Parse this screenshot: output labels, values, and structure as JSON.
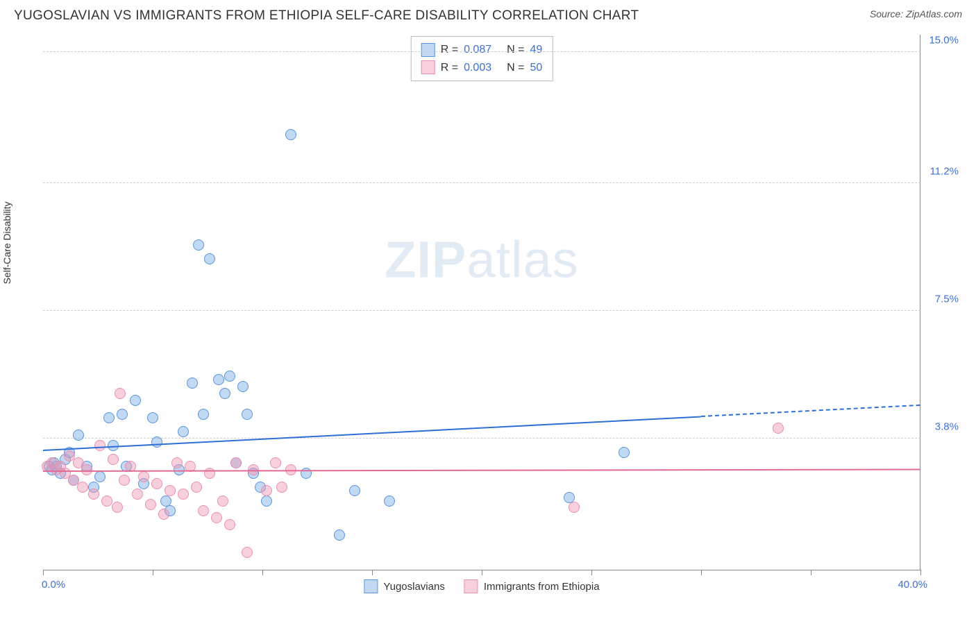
{
  "title": "YUGOSLAVIAN VS IMMIGRANTS FROM ETHIOPIA SELF-CARE DISABILITY CORRELATION CHART",
  "source": "Source: ZipAtlas.com",
  "ylabel": "Self-Care Disability",
  "watermark_a": "ZIP",
  "watermark_b": "atlas",
  "xlim": [
    0,
    40
  ],
  "ylim": [
    0,
    15.5
  ],
  "xaxis_min_label": "0.0%",
  "xaxis_max_label": "40.0%",
  "yticks": [
    {
      "v": 3.8,
      "label": "3.8%"
    },
    {
      "v": 7.5,
      "label": "7.5%"
    },
    {
      "v": 11.2,
      "label": "11.2%"
    },
    {
      "v": 15.0,
      "label": "15.0%"
    }
  ],
  "xtick_positions": [
    0,
    5,
    10,
    15,
    20,
    25,
    30,
    35,
    40
  ],
  "series": [
    {
      "key": "yugoslavians",
      "name": "Yugoslavians",
      "fill": "rgba(120,170,230,0.45)",
      "stroke": "#5a94d8",
      "trend_color": "#2e6fd6",
      "R": "0.087",
      "N": "49",
      "trend": {
        "x0": 0,
        "y0": 3.5,
        "x1": 40,
        "y1": 4.8,
        "solid_until_x": 30
      },
      "points": [
        [
          0.3,
          3.0
        ],
        [
          0.4,
          2.9
        ],
        [
          0.5,
          3.1
        ],
        [
          0.6,
          3.0
        ],
        [
          0.8,
          2.8
        ],
        [
          1.0,
          3.2
        ],
        [
          1.2,
          3.4
        ],
        [
          1.4,
          2.6
        ],
        [
          1.6,
          3.9
        ],
        [
          2.0,
          3.0
        ],
        [
          2.3,
          2.4
        ],
        [
          2.6,
          2.7
        ],
        [
          3.0,
          4.4
        ],
        [
          3.2,
          3.6
        ],
        [
          3.6,
          4.5
        ],
        [
          3.8,
          3.0
        ],
        [
          4.2,
          4.9
        ],
        [
          4.6,
          2.5
        ],
        [
          5.0,
          4.4
        ],
        [
          5.2,
          3.7
        ],
        [
          5.6,
          2.0
        ],
        [
          5.8,
          1.7
        ],
        [
          6.2,
          2.9
        ],
        [
          6.4,
          4.0
        ],
        [
          6.8,
          5.4
        ],
        [
          7.1,
          9.4
        ],
        [
          7.3,
          4.5
        ],
        [
          7.6,
          9.0
        ],
        [
          8.0,
          5.5
        ],
        [
          8.3,
          5.1
        ],
        [
          8.5,
          5.6
        ],
        [
          8.8,
          3.1
        ],
        [
          9.1,
          5.3
        ],
        [
          9.3,
          4.5
        ],
        [
          9.6,
          2.8
        ],
        [
          9.9,
          2.4
        ],
        [
          10.2,
          2.0
        ],
        [
          11.3,
          12.6
        ],
        [
          12.0,
          2.8
        ],
        [
          13.5,
          1.0
        ],
        [
          14.2,
          2.3
        ],
        [
          15.8,
          2.0
        ],
        [
          24.0,
          2.1
        ],
        [
          26.5,
          3.4
        ]
      ]
    },
    {
      "key": "ethiopia",
      "name": "Immigrants from Ethiopia",
      "fill": "rgba(240,150,180,0.45)",
      "stroke": "#e88fb0",
      "trend_color": "#e26a94",
      "R": "0.003",
      "N": "50",
      "trend": {
        "x0": 0,
        "y0": 2.9,
        "x1": 40,
        "y1": 2.95,
        "solid_until_x": 40
      },
      "points": [
        [
          0.2,
          3.0
        ],
        [
          0.4,
          3.1
        ],
        [
          0.6,
          2.9
        ],
        [
          0.8,
          3.0
        ],
        [
          1.0,
          2.8
        ],
        [
          1.2,
          3.3
        ],
        [
          1.4,
          2.6
        ],
        [
          1.6,
          3.1
        ],
        [
          1.8,
          2.4
        ],
        [
          2.0,
          2.9
        ],
        [
          2.3,
          2.2
        ],
        [
          2.6,
          3.6
        ],
        [
          2.9,
          2.0
        ],
        [
          3.2,
          3.2
        ],
        [
          3.4,
          1.8
        ],
        [
          3.5,
          5.1
        ],
        [
          3.7,
          2.6
        ],
        [
          4.0,
          3.0
        ],
        [
          4.3,
          2.2
        ],
        [
          4.6,
          2.7
        ],
        [
          4.9,
          1.9
        ],
        [
          5.2,
          2.5
        ],
        [
          5.5,
          1.6
        ],
        [
          5.8,
          2.3
        ],
        [
          6.1,
          3.1
        ],
        [
          6.4,
          2.2
        ],
        [
          6.7,
          3.0
        ],
        [
          7.0,
          2.4
        ],
        [
          7.3,
          1.7
        ],
        [
          7.6,
          2.8
        ],
        [
          7.9,
          1.5
        ],
        [
          8.2,
          2.0
        ],
        [
          8.5,
          1.3
        ],
        [
          8.8,
          3.1
        ],
        [
          9.3,
          0.5
        ],
        [
          9.6,
          2.9
        ],
        [
          10.2,
          2.3
        ],
        [
          10.6,
          3.1
        ],
        [
          10.9,
          2.4
        ],
        [
          11.3,
          2.9
        ],
        [
          24.2,
          1.8
        ],
        [
          33.5,
          4.1
        ]
      ]
    }
  ]
}
